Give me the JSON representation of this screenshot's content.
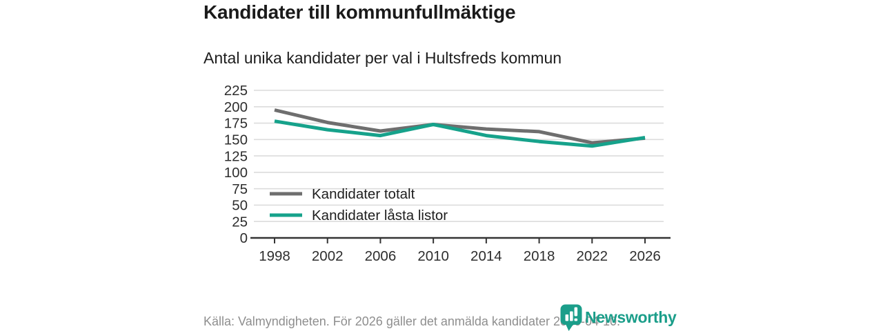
{
  "header": {
    "title": "Kandidater till kommunfullmäktige",
    "subtitle": "Antal unika kandidater per val i Hultsfreds kommun"
  },
  "chart_data": {
    "type": "line",
    "title": "Kandidater till kommunfullmäktige",
    "subtitle": "Antal unika kandidater per val i Hultsfreds kommun",
    "categories": [
      "1998",
      "2002",
      "2006",
      "2010",
      "2014",
      "2018",
      "2022",
      "2026"
    ],
    "series": [
      {
        "name": "Kandidater totalt",
        "color": "#6e6e6e",
        "values": [
          195,
          176,
          163,
          173,
          166,
          162,
          145,
          152
        ]
      },
      {
        "name": "Kandidater låsta listor",
        "color": "#16a28b",
        "values": [
          178,
          165,
          156,
          173,
          156,
          147,
          140,
          153
        ]
      }
    ],
    "xlabel": "",
    "ylabel": "",
    "ylim": [
      0,
      225
    ],
    "ytick_step": 25,
    "yticks": [
      0,
      25,
      50,
      75,
      100,
      125,
      150,
      175,
      200,
      225
    ],
    "grid": "horizontal",
    "legend_position": "inside-bottom-left"
  },
  "legend": {
    "items": [
      "Kandidater totalt",
      "Kandidater låsta listor"
    ]
  },
  "footer": {
    "source": "Källa: Valmyndigheten. För 2026 gäller det anmälda kandidater 2026-04-10."
  },
  "logo": {
    "text": "Newsworthy",
    "color": "#1b9e8a"
  },
  "colors": {
    "accent_teal": "#16a28b",
    "line_gray": "#6e6e6e",
    "gridline": "#dcdcdc",
    "axis": "#333333",
    "tick_text": "#2e2e2e",
    "muted_text": "#8e8e8e"
  }
}
